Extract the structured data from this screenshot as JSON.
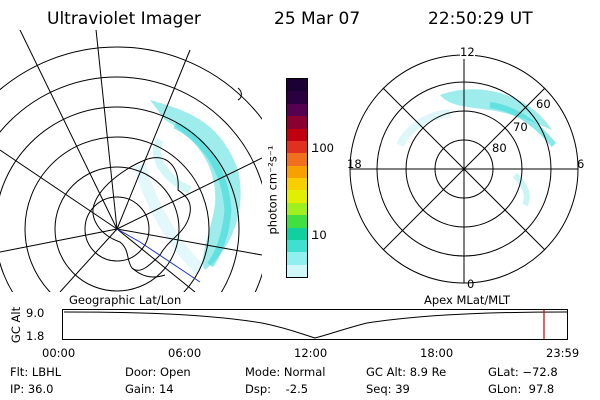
{
  "header": {
    "instrument": "Ultraviolet Imager",
    "date": "25 Mar 07",
    "time": "22:50:29 UT"
  },
  "colorbar": {
    "unit_label": "photon cm⁻²s⁻¹",
    "ticks": [
      "100",
      "10"
    ],
    "colors_top_to_bottom": [
      "#1a0033",
      "#2a0040",
      "#550050",
      "#8a0030",
      "#c00010",
      "#e03020",
      "#f07020",
      "#f8a000",
      "#f8d000",
      "#e0f000",
      "#a0f020",
      "#40e040",
      "#10d0a0",
      "#40e0d0",
      "#90f0f0",
      "#d0f8f8"
    ]
  },
  "left_panel": {
    "caption": "Geographic Lat/Lon"
  },
  "right_panel": {
    "caption": "Apex MLat/MLT",
    "mlt_labels": [
      "12",
      "18",
      "6",
      "0"
    ],
    "lat_labels": [
      "60",
      "70",
      "80"
    ]
  },
  "timeline": {
    "axis_label": "GC Alt",
    "y_ticks": [
      "9.0",
      "1.8"
    ],
    "x_ticks": [
      "00:00",
      "06:00",
      "12:00",
      "18:00",
      "23:59"
    ],
    "current_marker_color": "#cc0000"
  },
  "status": {
    "flt": "Flt: LBHL",
    "ip": "IP: 36.0",
    "door": "Door: Open",
    "gain": "Gain: 14",
    "mode": "Mode: Normal",
    "dsp": "Dsp:    -2.5",
    "gc_alt": "GC Alt: 8.9 Re",
    "seq": "Seq: 39",
    "glat": "GLat: −72.8",
    "glon": "GLon:  97.8"
  }
}
